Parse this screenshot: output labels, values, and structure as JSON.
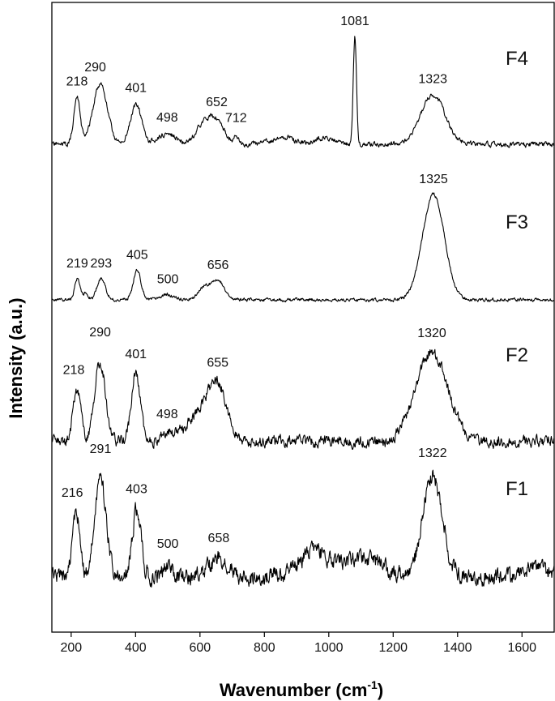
{
  "chart_data": {
    "type": "line",
    "xlabel": "Wavenumber (cm",
    "xlabel_sup": "-1",
    "xlabel_close": ")",
    "ylabel": "Intensity (a.u.)",
    "xlim": [
      140,
      1700
    ],
    "xticks": [
      {
        "value": 200,
        "label": "200"
      },
      {
        "value": 400,
        "label": "400"
      },
      {
        "value": 600,
        "label": "600"
      },
      {
        "value": 800,
        "label": "800"
      },
      {
        "value": 1000,
        "label": "1000"
      },
      {
        "value": 1200,
        "label": "1200"
      },
      {
        "value": 1400,
        "label": "1400"
      },
      {
        "value": 1600,
        "label": "1600"
      }
    ],
    "grid": false,
    "series": [
      {
        "name": "F4",
        "peaks": [
          {
            "x": 218,
            "label": "218",
            "h": 0.52,
            "w": 10
          },
          {
            "x": 290,
            "label": "290",
            "h": 0.68,
            "w": 22
          },
          {
            "x": 401,
            "label": "401",
            "h": 0.45,
            "w": 17
          },
          {
            "x": 498,
            "label": "498",
            "h": 0.12,
            "w": 28
          },
          {
            "x": 610,
            "label": "",
            "h": 0.2,
            "w": 25
          },
          {
            "x": 652,
            "label": "652",
            "h": 0.24,
            "w": 25
          },
          {
            "x": 712,
            "label": "712",
            "h": 0.1,
            "w": 6
          },
          {
            "x": 860,
            "label": "",
            "h": 0.08,
            "w": 35
          },
          {
            "x": 990,
            "label": "",
            "h": 0.08,
            "w": 30
          },
          {
            "x": 1081,
            "label": "1081",
            "h": 1.2,
            "w": 5
          },
          {
            "x": 1323,
            "label": "1323",
            "h": 0.55,
            "w": 38
          }
        ]
      },
      {
        "name": "F3",
        "peaks": [
          {
            "x": 219,
            "label": "219",
            "h": 0.2,
            "w": 8
          },
          {
            "x": 245,
            "label": "",
            "h": 0.06,
            "w": 8
          },
          {
            "x": 293,
            "label": "293",
            "h": 0.2,
            "w": 13
          },
          {
            "x": 405,
            "label": "405",
            "h": 0.28,
            "w": 12
          },
          {
            "x": 500,
            "label": "500",
            "h": 0.05,
            "w": 18
          },
          {
            "x": 612,
            "label": "",
            "h": 0.12,
            "w": 17
          },
          {
            "x": 656,
            "label": "656",
            "h": 0.18,
            "w": 20
          },
          {
            "x": 1325,
            "label": "1325",
            "h": 1.0,
            "w": 34
          }
        ]
      },
      {
        "name": "F2",
        "peaks": [
          {
            "x": 218,
            "label": "218",
            "h": 0.5,
            "w": 12
          },
          {
            "x": 290,
            "label": "290",
            "h": 0.75,
            "w": 17
          },
          {
            "x": 401,
            "label": "401",
            "h": 0.65,
            "w": 14
          },
          {
            "x": 498,
            "label": "498",
            "h": 0.06,
            "w": 20
          },
          {
            "x": 600,
            "label": "",
            "h": 0.25,
            "w": 45
          },
          {
            "x": 655,
            "label": "655",
            "h": 0.45,
            "w": 30
          },
          {
            "x": 1320,
            "label": "1320",
            "h": 0.85,
            "w": 50
          }
        ]
      },
      {
        "name": "F1",
        "peaks": [
          {
            "x": 216,
            "label": "216",
            "h": 0.55,
            "w": 11
          },
          {
            "x": 291,
            "label": "291",
            "h": 0.85,
            "w": 18
          },
          {
            "x": 403,
            "label": "403",
            "h": 0.58,
            "w": 14
          },
          {
            "x": 500,
            "label": "500",
            "h": 0.1,
            "w": 15
          },
          {
            "x": 658,
            "label": "658",
            "h": 0.15,
            "w": 30
          },
          {
            "x": 960,
            "label": "",
            "h": 0.22,
            "w": 50
          },
          {
            "x": 1110,
            "label": "",
            "h": 0.18,
            "w": 50
          },
          {
            "x": 1322,
            "label": "1322",
            "h": 0.9,
            "w": 30
          },
          {
            "x": 1640,
            "label": "",
            "h": 0.08,
            "w": 40
          }
        ]
      }
    ]
  }
}
